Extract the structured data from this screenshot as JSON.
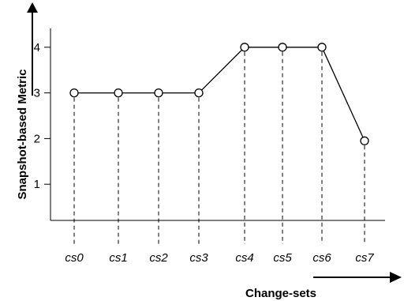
{
  "chart_data": {
    "type": "line",
    "title": "",
    "xlabel": "Change-sets",
    "ylabel": "Snapshot-based Metric",
    "categories": [
      "cs0",
      "cs1",
      "cs2",
      "cs3",
      "cs4",
      "cs5",
      "cs6",
      "cs7"
    ],
    "series": [
      {
        "values": [
          3,
          3,
          3,
          3,
          4,
          4,
          4,
          1.95
        ]
      }
    ],
    "yticks": [
      1,
      2,
      3,
      4
    ],
    "ylim": [
      0.6,
      4.9
    ],
    "grid": false,
    "markers": "open-circle",
    "drop_lines": "dashed",
    "colors": {
      "line": "#000000",
      "marker_fill": "#ffffff"
    }
  }
}
